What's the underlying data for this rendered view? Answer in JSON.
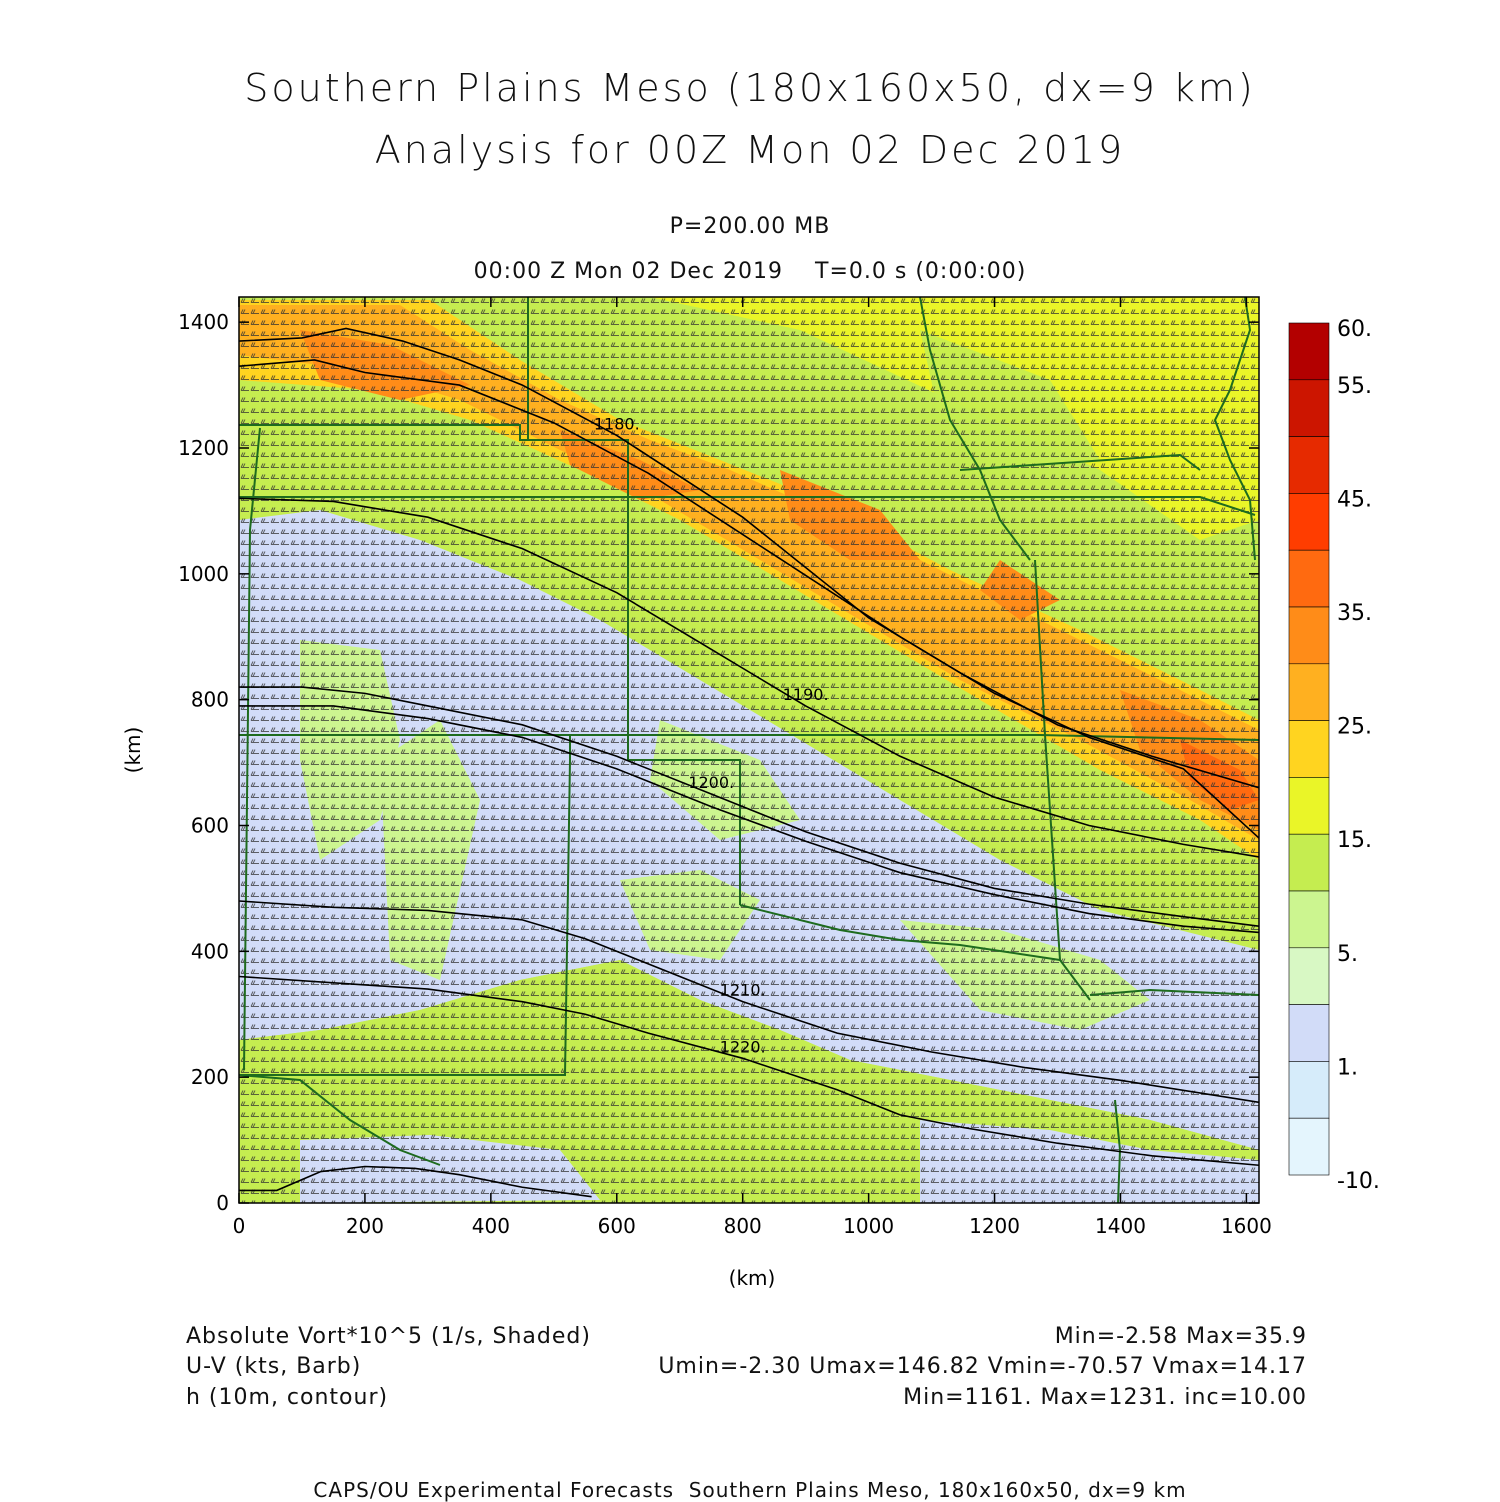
{
  "header": {
    "title_line1": "Southern Plains Meso (180x160x50, dx=9 km)",
    "title_line2": "Analysis for 00Z Mon 02 Dec 2019",
    "level": "P=200.00 MB",
    "time": "00:00 Z Mon 02 Dec 2019    T=0.0 s (0:00:00)"
  },
  "legend_info": {
    "field1_label": "Absolute Vort*10^5 (1/s, Shaded)",
    "field1_stats": "Min=-2.58 Max=35.9",
    "field2_label": "U-V (kts, Barb)",
    "field2_stats": "Umin=-2.30 Umax=146.82 Vmin=-70.57 Vmax=14.17",
    "field3_label": "h (10m, contour)",
    "field3_stats": "Min=1161. Max=1231. inc=10.00"
  },
  "footer": "CAPS/OU Experimental Forecasts  Southern Plains Meso, 180x160x50, dx=9 km",
  "colorbar": {
    "labels": [
      "60.",
      "55.",
      "45.",
      "35.",
      "25.",
      "15.",
      "5.",
      "1.",
      "-10."
    ],
    "colors": [
      "#b30000",
      "#cc1500",
      "#e62a00",
      "#ff3d00",
      "#ff6a10",
      "#ff8c18",
      "#ffb020",
      "#ffd420",
      "#eaf528",
      "#c5ed50",
      "#ccf590",
      "#d8f8c4",
      "#d2dcf8",
      "#d6ecfa",
      "#e4f5fd"
    ]
  },
  "chart_data": {
    "type": "heatmap",
    "title": "Absolute Vort*10^5 (1/s, Shaded)",
    "xlabel": "(km)",
    "ylabel": "(km)",
    "xlim": [
      0,
      1620
    ],
    "ylim": [
      0,
      1440
    ],
    "xticks": [
      0,
      200,
      400,
      600,
      800,
      1000,
      1200,
      1400,
      1600
    ],
    "yticks": [
      0,
      200,
      400,
      600,
      800,
      1000,
      1200,
      1400
    ],
    "shading_levels": [
      -10,
      1,
      5,
      15,
      25,
      35,
      45,
      55,
      60
    ],
    "vorticity_min": -2.58,
    "vorticity_max": 35.9,
    "height_contours": [
      {
        "label": "1180.",
        "points": [
          [
            0,
            1370
          ],
          [
            100,
            1375
          ],
          [
            170,
            1390
          ],
          [
            260,
            1370
          ],
          [
            350,
            1340
          ],
          [
            450,
            1300
          ],
          [
            600,
            1220
          ],
          [
            800,
            1090
          ],
          [
            1000,
            930
          ],
          [
            1150,
            840
          ],
          [
            1300,
            760
          ],
          [
            1450,
            710
          ],
          [
            1620,
            660
          ]
        ]
      },
      {
        "label": "",
        "points": [
          [
            0,
            1330
          ],
          [
            120,
            1340
          ],
          [
            200,
            1320
          ],
          [
            350,
            1300
          ],
          [
            500,
            1240
          ],
          [
            650,
            1160
          ],
          [
            850,
            1030
          ],
          [
            1050,
            900
          ],
          [
            1200,
            810
          ],
          [
            1350,
            740
          ],
          [
            1500,
            690
          ],
          [
            1620,
            580
          ]
        ]
      },
      {
        "label": "1190.",
        "points": [
          [
            0,
            1120
          ],
          [
            150,
            1115
          ],
          [
            300,
            1090
          ],
          [
            450,
            1040
          ],
          [
            600,
            970
          ],
          [
            750,
            880
          ],
          [
            900,
            790
          ],
          [
            1050,
            710
          ],
          [
            1200,
            645
          ],
          [
            1350,
            600
          ],
          [
            1500,
            570
          ],
          [
            1620,
            550
          ]
        ]
      },
      {
        "label": "1200.",
        "points": [
          [
            0,
            820
          ],
          [
            100,
            820
          ],
          [
            200,
            810
          ],
          [
            300,
            790
          ],
          [
            450,
            760
          ],
          [
            600,
            710
          ],
          [
            750,
            650
          ],
          [
            900,
            590
          ],
          [
            1050,
            540
          ],
          [
            1200,
            500
          ],
          [
            1350,
            475
          ],
          [
            1500,
            455
          ],
          [
            1620,
            440
          ]
        ]
      },
      {
        "label": "",
        "points": [
          [
            0,
            790
          ],
          [
            150,
            790
          ],
          [
            300,
            770
          ],
          [
            450,
            740
          ],
          [
            600,
            690
          ],
          [
            750,
            630
          ],
          [
            900,
            575
          ],
          [
            1050,
            525
          ],
          [
            1200,
            490
          ],
          [
            1350,
            460
          ],
          [
            1500,
            440
          ],
          [
            1620,
            430
          ]
        ]
      },
      {
        "label": "1210.",
        "points": [
          [
            0,
            480
          ],
          [
            150,
            470
          ],
          [
            300,
            465
          ],
          [
            450,
            450
          ],
          [
            550,
            420
          ],
          [
            650,
            380
          ],
          [
            800,
            320
          ],
          [
            950,
            270
          ],
          [
            1100,
            240
          ],
          [
            1250,
            215
          ],
          [
            1400,
            195
          ],
          [
            1620,
            160
          ]
        ]
      },
      {
        "label": "1220.",
        "points": [
          [
            0,
            360
          ],
          [
            150,
            350
          ],
          [
            300,
            340
          ],
          [
            450,
            320
          ],
          [
            550,
            300
          ],
          [
            650,
            270
          ],
          [
            800,
            230
          ],
          [
            950,
            180
          ],
          [
            1050,
            140
          ],
          [
            1150,
            120
          ],
          [
            1300,
            95
          ],
          [
            1450,
            75
          ],
          [
            1620,
            60
          ]
        ]
      },
      {
        "label": "",
        "points": [
          [
            0,
            20
          ],
          [
            60,
            20
          ],
          [
            130,
            50
          ],
          [
            200,
            58
          ],
          [
            280,
            55
          ],
          [
            350,
            45
          ],
          [
            450,
            25
          ],
          [
            560,
            10
          ]
        ]
      }
    ],
    "barb_summary": "Westerly to northwesterly wind barbs across the domain, strongest (~100-145 kts) in the jet from Kansas to Arkansas"
  }
}
